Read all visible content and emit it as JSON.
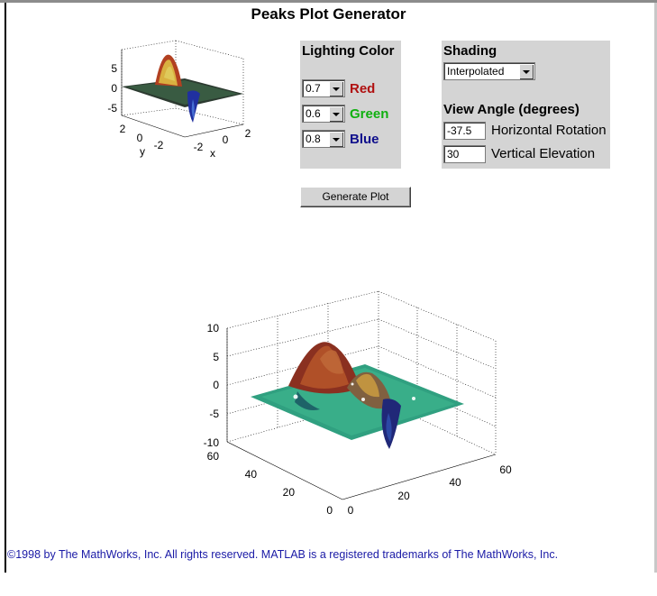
{
  "page": {
    "title": "Peaks Plot Generator"
  },
  "lighting": {
    "heading": "Lighting Color",
    "red": {
      "value": "0.7",
      "label": "Red",
      "color": "#b01010"
    },
    "green": {
      "value": "0.6",
      "label": "Green",
      "color": "#10b010"
    },
    "blue": {
      "value": "0.8",
      "label": "Blue",
      "color": "#10108c"
    }
  },
  "shading": {
    "heading": "Shading",
    "selected": "Interpolated"
  },
  "view_angle": {
    "heading": "View Angle (degrees)",
    "rotation": {
      "value": "-37.5",
      "label": "Horizontal Rotation"
    },
    "elevation": {
      "value": "30",
      "label": "Vertical Elevation"
    }
  },
  "generate_button": {
    "label": "Generate Plot"
  },
  "small_plot": {
    "z_ticks": [
      "5",
      "0",
      "-5"
    ],
    "y_ticks": [
      "2",
      "0",
      "-2"
    ],
    "x_ticks": [
      "-2",
      "0",
      "2"
    ],
    "xlabel": "x",
    "ylabel": "y"
  },
  "large_plot": {
    "z_ticks": [
      "10",
      "5",
      "0",
      "-5",
      "-10"
    ],
    "y_ticks": [
      "60",
      "40",
      "20",
      "0"
    ],
    "x_ticks": [
      "0",
      "20",
      "40",
      "60"
    ]
  },
  "footer": {
    "text": "©1998 by The MathWorks, Inc. All rights reserved. MATLAB is a registered trademarks of The MathWorks, Inc."
  },
  "chart_data": [
    {
      "type": "surface",
      "title": "",
      "xlabel": "x",
      "ylabel": "y",
      "zlim": [
        -7,
        7
      ],
      "xlim": [
        -3,
        3
      ],
      "ylim": [
        -3,
        3
      ],
      "z_ticks": [
        5,
        0,
        -5
      ],
      "colormap": "jet"
    },
    {
      "type": "surface",
      "title": "",
      "xlim": [
        0,
        60
      ],
      "ylim": [
        0,
        60
      ],
      "zlim": [
        -10,
        10
      ],
      "z_ticks": [
        10,
        5,
        0,
        -5,
        -10
      ],
      "shading": "interp"
    }
  ]
}
